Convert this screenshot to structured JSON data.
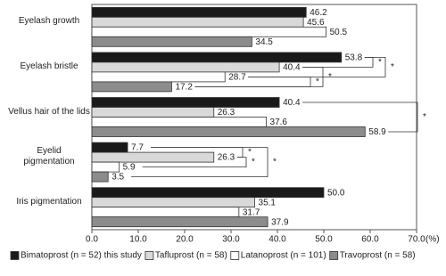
{
  "chart_data": {
    "type": "hbar",
    "categories": [
      "Eyelash growth",
      "Eyelash bristle",
      "Vellus hair of the lids",
      "Eyelid pigmentation",
      "Iris pigmentation"
    ],
    "series": [
      {
        "name": "Bimatoprost (n = 52) this study",
        "color": "#1a1a1a",
        "values": [
          46.2,
          53.8,
          40.4,
          7.7,
          50.0
        ],
        "value_labels": [
          "46.2",
          "53.8",
          "40.4",
          "7.7",
          "50.0"
        ]
      },
      {
        "name": "Tafluprost (n = 58)",
        "color": "#d9d9d9",
        "values": [
          45.6,
          40.4,
          26.3,
          26.3,
          35.1
        ],
        "value_labels": [
          "45.6",
          "40.4",
          "26.3",
          "26.3",
          "35.1"
        ]
      },
      {
        "name": "Latanoprost (n = 101)",
        "color": "#ffffff",
        "values": [
          50.5,
          28.7,
          37.6,
          5.9,
          31.7
        ],
        "value_labels": [
          "50.5",
          "28.7",
          "37.6",
          "5.9",
          "31.7"
        ]
      },
      {
        "name": "Travoprost (n = 58)",
        "color": "#8c8c8c",
        "values": [
          34.5,
          17.2,
          58.9,
          3.5,
          37.9
        ],
        "value_labels": [
          "34.5",
          "17.2",
          "58.9",
          "3.5",
          "37.9"
        ]
      }
    ],
    "xlim": [
      0,
      70
    ],
    "xticks": [
      {
        "value": 0,
        "label": "0.0"
      },
      {
        "value": 10,
        "label": "10.0"
      },
      {
        "value": 20,
        "label": "20.0"
      },
      {
        "value": 30,
        "label": "30.0"
      },
      {
        "value": 40,
        "label": "40.0"
      },
      {
        "value": 50,
        "label": "50.0"
      },
      {
        "value": 60,
        "label": "60.0"
      },
      {
        "value": 70,
        "label": "70.0"
      }
    ],
    "x_unit": "(%)",
    "annotations": [
      "*",
      "*",
      "*",
      "*",
      "*",
      "*",
      "*",
      "*"
    ]
  }
}
